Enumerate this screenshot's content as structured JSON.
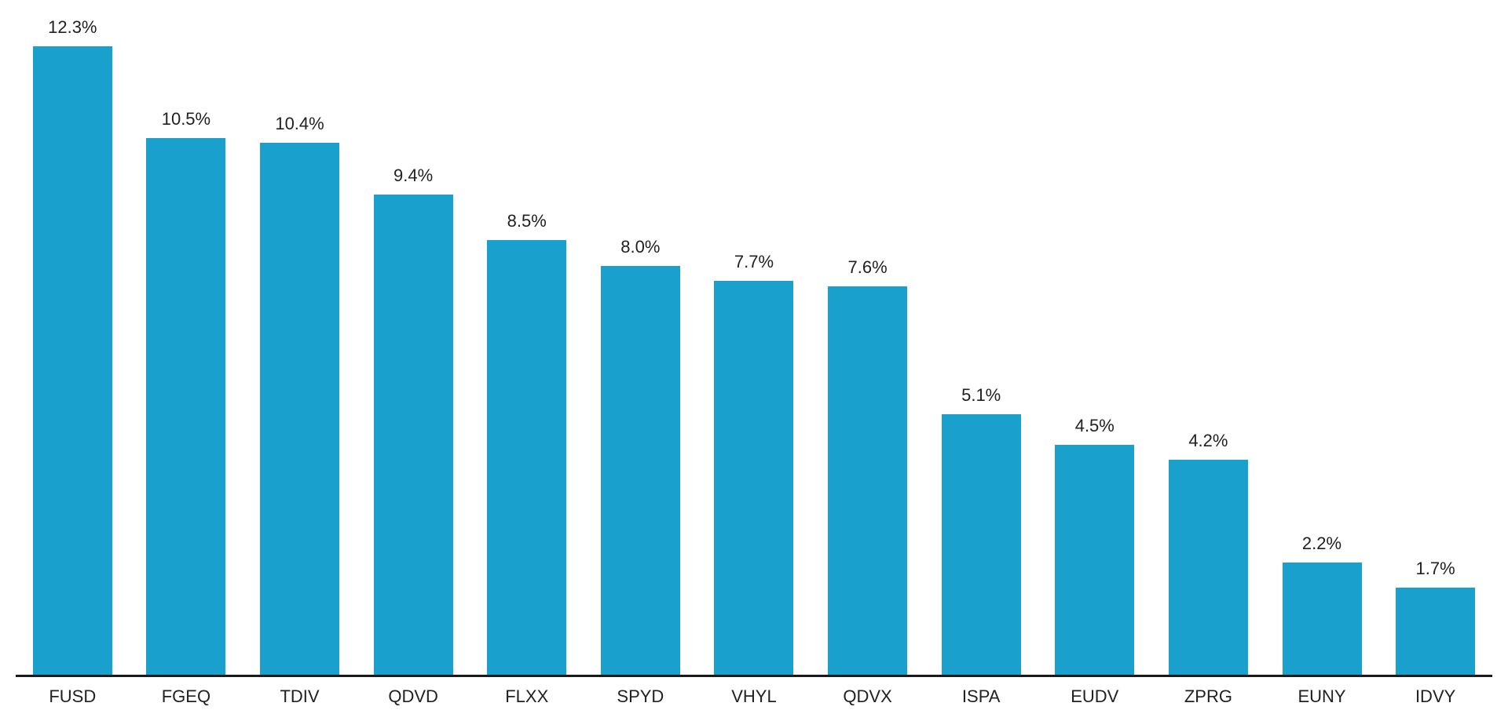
{
  "chart_data": {
    "type": "bar",
    "title": "",
    "xlabel": "",
    "ylabel": "",
    "categories": [
      "FUSD",
      "FGEQ",
      "TDIV",
      "QDVD",
      "FLXX",
      "SPYD",
      "VHYL",
      "QDVX",
      "ISPA",
      "EUDV",
      "ZPRG",
      "EUNY",
      "IDVY"
    ],
    "values": [
      12.3,
      10.5,
      10.4,
      9.4,
      8.5,
      8.0,
      7.7,
      7.6,
      5.1,
      4.5,
      4.2,
      2.2,
      1.7
    ],
    "value_labels": [
      "12.3%",
      "10.5%",
      "10.4%",
      "9.4%",
      "8.5%",
      "8.0%",
      "7.7%",
      "7.6%",
      "5.1%",
      "4.5%",
      "4.2%",
      "2.2%",
      "1.7%"
    ],
    "ylim": [
      0,
      13.2
    ],
    "grid": false,
    "legend_position": "none",
    "bar_color": "#19A0CC",
    "axis_line_color": "#1a1a1a",
    "text_color": "#212121"
  }
}
